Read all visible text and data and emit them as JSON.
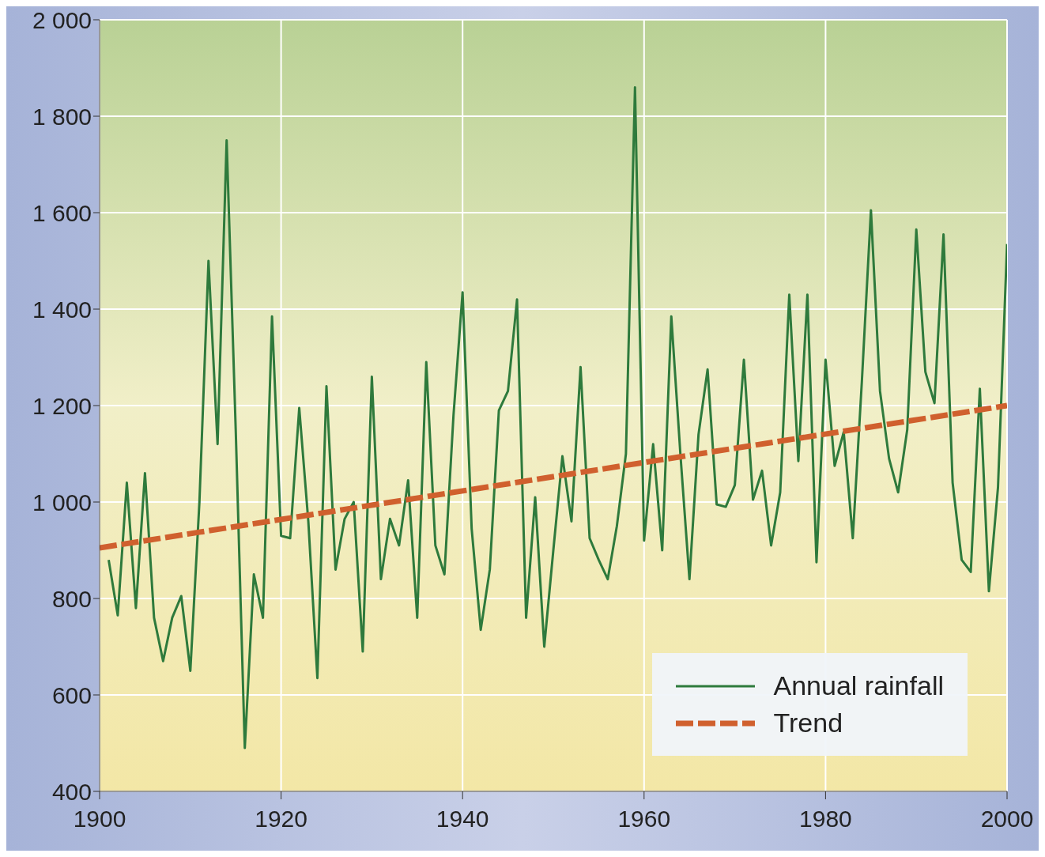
{
  "chart_data": {
    "type": "line",
    "x": [
      1901,
      1902,
      1903,
      1904,
      1905,
      1906,
      1907,
      1908,
      1909,
      1910,
      1911,
      1912,
      1913,
      1914,
      1915,
      1916,
      1917,
      1918,
      1919,
      1920,
      1921,
      1922,
      1923,
      1924,
      1925,
      1926,
      1927,
      1928,
      1929,
      1930,
      1931,
      1932,
      1933,
      1934,
      1935,
      1936,
      1937,
      1938,
      1939,
      1940,
      1941,
      1942,
      1943,
      1944,
      1945,
      1946,
      1947,
      1948,
      1949,
      1950,
      1951,
      1952,
      1953,
      1954,
      1955,
      1956,
      1957,
      1958,
      1959,
      1960,
      1961,
      1962,
      1963,
      1964,
      1965,
      1966,
      1967,
      1968,
      1969,
      1970,
      1971,
      1972,
      1973,
      1974,
      1975,
      1976,
      1977,
      1978,
      1979,
      1980,
      1981,
      1982,
      1983,
      1984,
      1985,
      1986,
      1987,
      1988,
      1989,
      1990,
      1991,
      1992,
      1993,
      1994,
      1995,
      1996,
      1997,
      1998,
      1999,
      2000
    ],
    "series": [
      {
        "name": "Annual rainfall",
        "color": "#2e7a3c",
        "values": [
          880,
          765,
          1040,
          780,
          1060,
          760,
          670,
          760,
          805,
          650,
          1000,
          1500,
          1120,
          1750,
          1150,
          490,
          850,
          760,
          1385,
          930,
          925,
          1195,
          960,
          635,
          1240,
          860,
          965,
          1000,
          690,
          1260,
          840,
          965,
          910,
          1045,
          760,
          1290,
          910,
          850,
          1180,
          1435,
          945,
          735,
          860,
          1190,
          1230,
          1420,
          760,
          1010,
          700,
          900,
          1095,
          960,
          1280,
          925,
          880,
          840,
          950,
          1100,
          1860,
          920,
          1120,
          900,
          1385,
          1100,
          840,
          1140,
          1275,
          995,
          990,
          1035,
          1295,
          1005,
          1065,
          910,
          1020,
          1430,
          1085,
          1430,
          875,
          1295,
          1075,
          1145,
          925,
          1250,
          1605,
          1230,
          1090,
          1020,
          1150,
          1565,
          1270,
          1205,
          1555,
          1040,
          880,
          855,
          1235,
          815,
          1030,
          1535
        ]
      },
      {
        "name": "Trend",
        "color": "#d0602e",
        "line_style": "dashed",
        "x": [
          1900,
          2000
        ],
        "values": [
          905,
          1200
        ]
      }
    ],
    "xlim": [
      1900,
      2000
    ],
    "xticks": [
      1900,
      1920,
      1940,
      1960,
      1980,
      2000
    ],
    "ylim": [
      400,
      2000
    ],
    "yticks": [
      {
        "value": 400,
        "label": "400"
      },
      {
        "value": 600,
        "label": "600"
      },
      {
        "value": 800,
        "label": "800"
      },
      {
        "value": 1000,
        "label": "1 000"
      },
      {
        "value": 1200,
        "label": "1 200"
      },
      {
        "value": 1400,
        "label": "1 400"
      },
      {
        "value": 1600,
        "label": "1 600"
      },
      {
        "value": 1800,
        "label": "1 800"
      },
      {
        "value": 2000,
        "label": "2 000"
      }
    ],
    "grid": true,
    "legend": "bottom right"
  }
}
